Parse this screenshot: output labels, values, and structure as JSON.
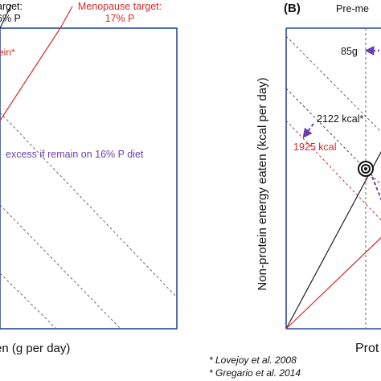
{
  "panel_a": {
    "target_line1": "arget:",
    "target_line2": "6% P",
    "menopause_title": "Menopause target:",
    "menopause_value": "17% P",
    "protein_ref": "ein*",
    "excess_note": "excess if remain on 16% P diet",
    "x_axis_label": "en (g per day)"
  },
  "panel_b": {
    "panel_letter": "(B)",
    "phase_label": "Pre-me",
    "y_axis_label": "Non-protein energy eaten (kcal per day)",
    "protein_amount": "85g",
    "energy_ref": "2122 kcal*",
    "energy_alt": "1925 kcal",
    "x_axis_label": "Prot"
  },
  "footnotes": {
    "ref1": "* Lovejoy et al. 2008",
    "ref2": "* Gregario et al. 2014"
  },
  "colors": {
    "frame_blue": "#2b4a9b",
    "menopause_red": "#d42a2a",
    "annotation_purple": "#6a3fb0",
    "line_black": "#222222",
    "dashed_gray": "#666666"
  }
}
